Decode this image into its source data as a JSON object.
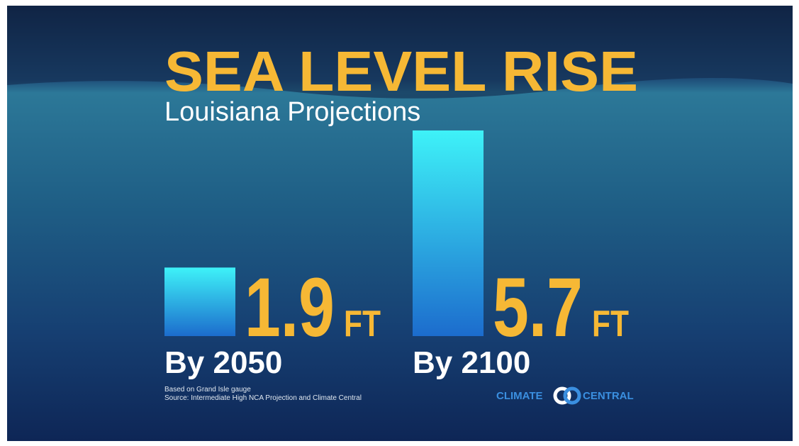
{
  "chart_data": {
    "type": "bar",
    "title": "SEA LEVEL RISE",
    "subtitle": "Louisiana Projections",
    "categories": [
      "By 2050",
      "By 2100"
    ],
    "values": [
      1.9,
      5.7
    ],
    "unit": "FT",
    "notes": [
      "Based on Grand Isle gauge",
      "Source: Intermediate High NCA Projection and Climate Central"
    ],
    "logo": [
      "CLIMATE",
      "CENTRAL"
    ]
  }
}
